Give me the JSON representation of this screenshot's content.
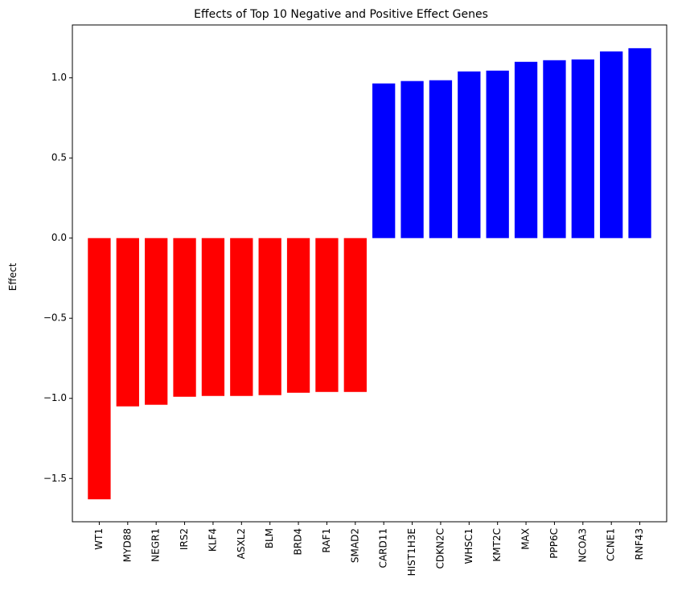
{
  "chart_data": {
    "type": "bar",
    "title": "Effects of Top 10 Negative and Positive Effect Genes",
    "xlabel": "",
    "ylabel": "Effect",
    "ylim": [
      -1.77,
      1.33
    ],
    "yticks": [
      -1.5,
      -1.0,
      -0.5,
      0.0,
      0.5,
      1.0
    ],
    "ytick_labels": [
      "−1.5",
      "−1.0",
      "−0.5",
      "0.0",
      "0.5",
      "1.0"
    ],
    "grid": false,
    "legend": "none",
    "categories": [
      "WT1",
      "MYD88",
      "NEGR1",
      "IRS2",
      "KLF4",
      "ASXL2",
      "BLM",
      "BRD4",
      "RAF1",
      "SMAD2",
      "CARD11",
      "HIST1H3E",
      "CDKN2C",
      "WHSC1",
      "KMT2C",
      "MAX",
      "PPP6C",
      "NCOA3",
      "CCNE1",
      "RNF43"
    ],
    "values": [
      -1.63,
      -1.05,
      -1.04,
      -0.99,
      -0.985,
      -0.985,
      -0.98,
      -0.965,
      -0.96,
      -0.96,
      0.965,
      0.98,
      0.985,
      1.04,
      1.045,
      1.1,
      1.11,
      1.115,
      1.165,
      1.185
    ],
    "colors": {
      "negative": "#ff0000",
      "positive": "#0000ff"
    }
  }
}
